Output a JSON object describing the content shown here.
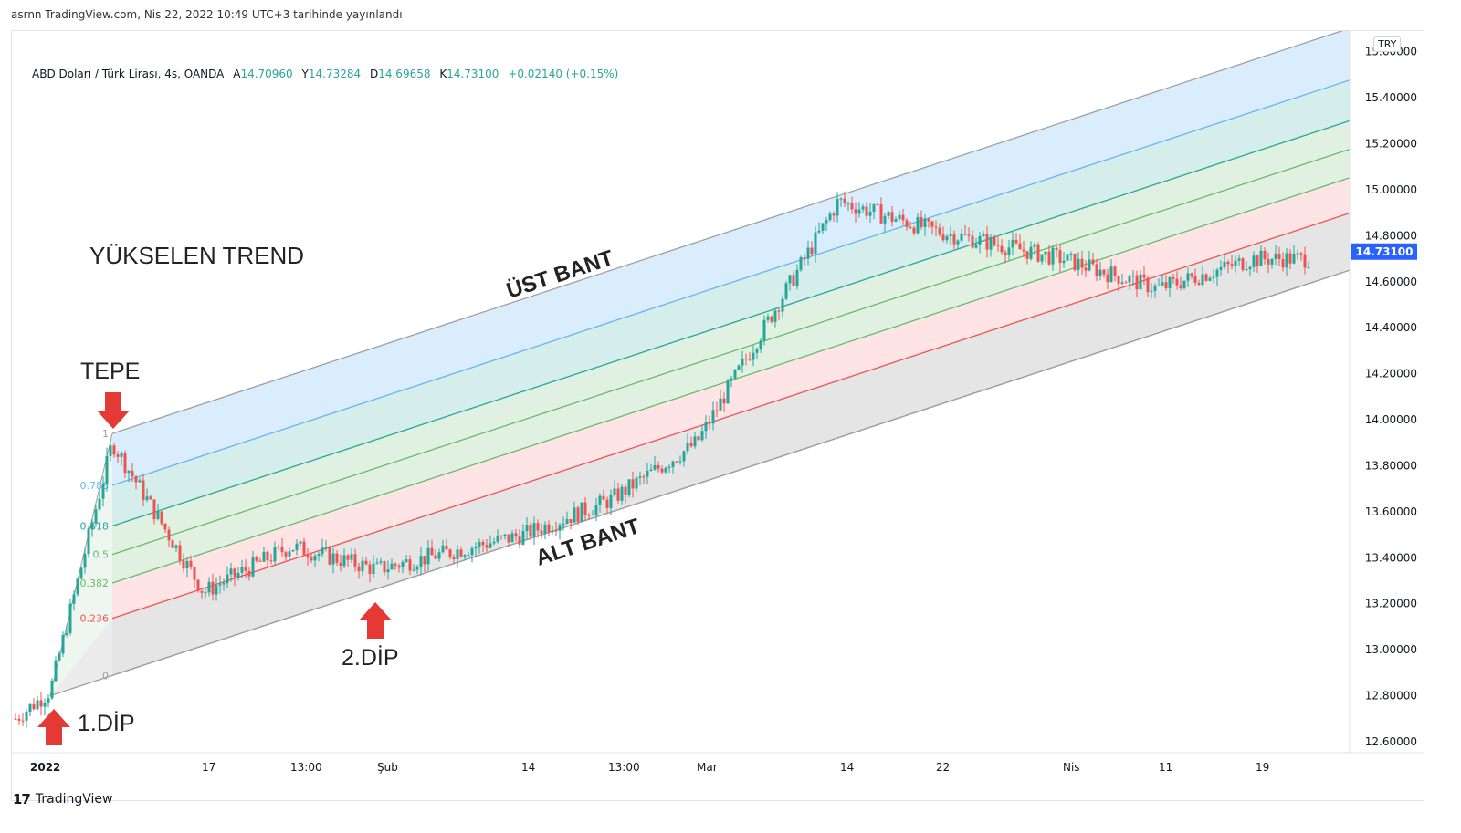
{
  "published_line": "asrnn TradingView.com, Nis 22, 2022 10:49 UTC+3 tarihinde yayınlandı",
  "legend": {
    "symbol": "ABD Doları / Türk Lirası, 4s, OANDA",
    "open_label": "A",
    "open": "14.70960",
    "high_label": "Y",
    "high": "14.73284",
    "low_label": "D",
    "low": "14.69658",
    "close_label": "K",
    "close": "14.73100",
    "change": "+0.02140 (+0.15%)"
  },
  "currency": "TRY",
  "last_price": "14.73100",
  "footer_brand": "TradingView",
  "annotations": {
    "title": "YÜKSELEN TREND",
    "top_label": "TEPE",
    "dip1": "1.DİP",
    "dip2": "2.DİP",
    "upper_band": "ÜST BANT",
    "lower_band": "ALT BANT"
  },
  "colors": {
    "up": "#26a69a",
    "down": "#ef5350",
    "price_tag": "#2962ff",
    "band_blue": "#bbdefb",
    "band_teal": "#b2dfdb",
    "band_green": "#c8e6c9",
    "band_red": "#ffcdd2",
    "band_grey": "#e0e0e0",
    "arrow": "#e53935"
  },
  "chart_data": {
    "type": "candlestick",
    "instrument": "USD/TRY",
    "timeframe": "4s",
    "y_ticks": [
      "15.60000",
      "15.40000",
      "15.20000",
      "15.00000",
      "14.80000",
      "14.60000",
      "14.40000",
      "14.20000",
      "14.00000",
      "13.80000",
      "13.60000",
      "13.40000",
      "13.20000",
      "13.00000",
      "12.80000",
      "12.60000"
    ],
    "x_ticks": [
      "2022",
      "17",
      "13:00",
      "Şub",
      "14",
      "13:00",
      "Mar",
      "14",
      "22",
      "Nis",
      "11",
      "19"
    ],
    "ylim": [
      12.6,
      15.69
    ],
    "fib_channel": {
      "levels": [
        "1",
        "0.786",
        "0.618",
        "0.5",
        "0.382",
        "0.236",
        "0"
      ],
      "start_price": 12.8,
      "top_price": 13.94,
      "end_price_at_right_edge": 14.65
    },
    "close_path_approx": [
      {
        "x": "2022",
        "price": 12.7
      },
      {
        "x": "1.DİP",
        "price": 12.82
      },
      {
        "x": "TEPE",
        "price": 13.9
      },
      {
        "x": "17",
        "price": 13.25
      },
      {
        "x": "13:00",
        "price": 13.45
      },
      {
        "x": "Şub",
        "price": 13.35
      },
      {
        "x": "14",
        "price": 13.5
      },
      {
        "x": "13:00",
        "price": 13.65
      },
      {
        "x": "Mar",
        "price": 13.9
      },
      {
        "x": "14",
        "price": 14.95
      },
      {
        "x": "22",
        "price": 14.82
      },
      {
        "x": "Nis",
        "price": 14.7
      },
      {
        "x": "11",
        "price": 14.57
      },
      {
        "x": "19",
        "price": 14.7
      }
    ],
    "last": 14.731
  }
}
